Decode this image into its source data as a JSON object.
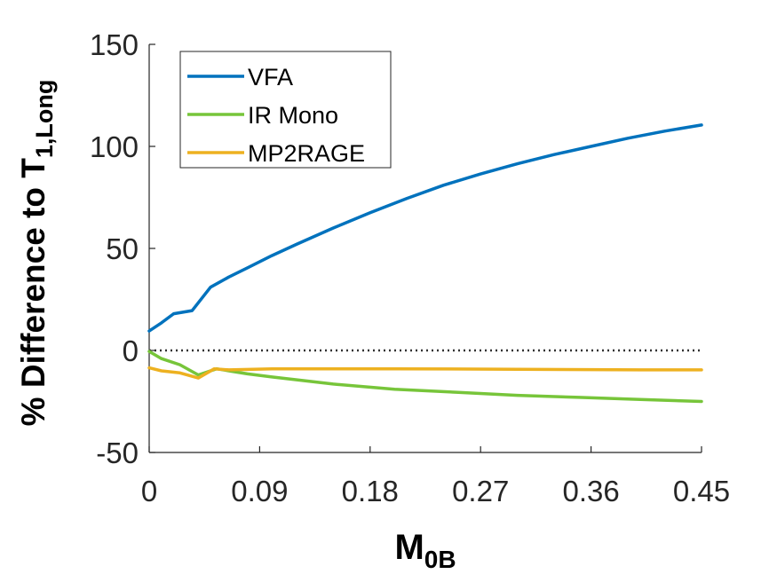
{
  "chart_data": {
    "type": "line",
    "xlabel": "M",
    "xlabel_sub": "0B",
    "ylabel": "% Difference to T",
    "ylabel_sub": "1,Long",
    "xlim": [
      0,
      0.45
    ],
    "ylim": [
      -50,
      150
    ],
    "xticks": [
      "0",
      "0.09",
      "0.18",
      "0.27",
      "0.36",
      "0.45"
    ],
    "yticks": [
      "-50",
      "0",
      "50",
      "100",
      "150"
    ],
    "grid": false,
    "legend_position": "top-left",
    "reference_line": {
      "y": 0,
      "style": "dotted",
      "color": "#333333"
    },
    "series": [
      {
        "name": "VFA",
        "color": "#0072BD",
        "x": [
          0,
          0.01,
          0.02,
          0.035,
          0.05,
          0.065,
          0.08,
          0.1,
          0.12,
          0.15,
          0.18,
          0.21,
          0.24,
          0.27,
          0.3,
          0.33,
          0.36,
          0.39,
          0.42,
          0.45
        ],
        "y": [
          9.5,
          13.5,
          18,
          19.5,
          31,
          36,
          40.5,
          46.5,
          52,
          60,
          67.5,
          74.5,
          81,
          86.5,
          91.5,
          96,
          100,
          104,
          107.5,
          110.5
        ]
      },
      {
        "name": "IR Mono",
        "color": "#77C53A",
        "x": [
          0,
          0.01,
          0.025,
          0.04,
          0.055,
          0.065,
          0.08,
          0.1,
          0.15,
          0.2,
          0.25,
          0.3,
          0.35,
          0.4,
          0.45
        ],
        "y": [
          -0.5,
          -4,
          -7,
          -12,
          -9,
          -10,
          -11.5,
          -13,
          -16.5,
          -19,
          -20.5,
          -22,
          -23,
          -24,
          -25
        ]
      },
      {
        "name": "MP2RAGE",
        "color": "#EDB120",
        "x": [
          0,
          0.01,
          0.025,
          0.04,
          0.053,
          0.065,
          0.1,
          0.2,
          0.3,
          0.4,
          0.45
        ],
        "y": [
          -8.5,
          -10,
          -11,
          -13.5,
          -9,
          -9.5,
          -9,
          -9,
          -9.2,
          -9.5,
          -9.5
        ]
      }
    ]
  }
}
